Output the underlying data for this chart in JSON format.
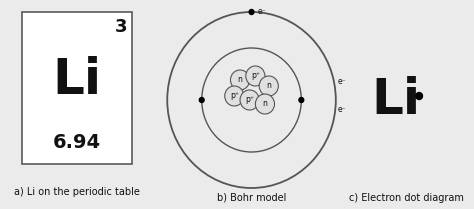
{
  "bg_color": "#ebebeb",
  "title_a": "a) Li on the periodic table",
  "title_b": "b) Bohr model",
  "title_c": "c) Electron dot diagram",
  "atomic_number": "3",
  "symbol": "Li",
  "atomic_mass": "6.94",
  "box_edge_color": "#666666",
  "box_face_color": "#ffffff",
  "nucleus_face_color": "#e0e0e0",
  "nucleus_edge_color": "#555555",
  "orbit_color": "#555555",
  "electron_label": "e⁻",
  "proton_label": "p⁺",
  "neutron_label": "n",
  "text_color": "#111111",
  "label_fontsize": 7.0,
  "atomic_num_fontsize": 13,
  "symbol_fontsize": 36,
  "mass_fontsize": 14
}
